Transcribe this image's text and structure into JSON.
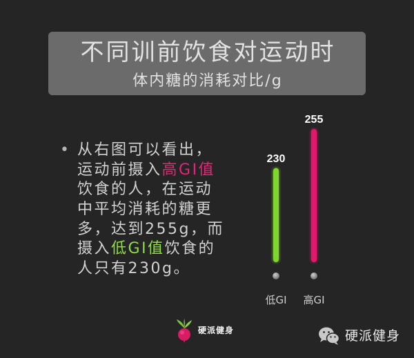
{
  "theme": {
    "background": "#252525",
    "title_box": "#6b6b6b",
    "title_text": "#e2e2e2"
  },
  "chart_data": {
    "type": "bar",
    "title": "不同训前饮食对运动时",
    "subtitle": "体内糖的消耗对比/g",
    "categories": [
      "低GI",
      "高GI"
    ],
    "values": [
      230,
      255
    ],
    "colors": [
      "#7fd62f",
      "#e3186c"
    ],
    "ylim": [
      170,
      255
    ],
    "xlabel": "",
    "ylabel": "",
    "grid": false,
    "legend": "none"
  },
  "summary": {
    "bullet": "•",
    "lines": [
      [
        "从右图可以看出，"
      ],
      [
        "运动前摄入",
        "高GI值"
      ],
      [
        "饮食的人，在运动"
      ],
      [
        "中平均消耗的糖更"
      ],
      [
        "多，达到255g，而"
      ],
      [
        "摄入",
        "低GI值",
        "饮食的"
      ],
      [
        "人只有230g。"
      ]
    ],
    "text_color": "#d2d2d2",
    "highlight_colors": {
      "high_gi": "#e8237a",
      "low_gi": "#8ee03e"
    }
  },
  "logo": {
    "icon": "radish-icon",
    "text": "硬派健身"
  },
  "watermark": {
    "icon": "wechat-icon",
    "text": "硬派健身"
  }
}
